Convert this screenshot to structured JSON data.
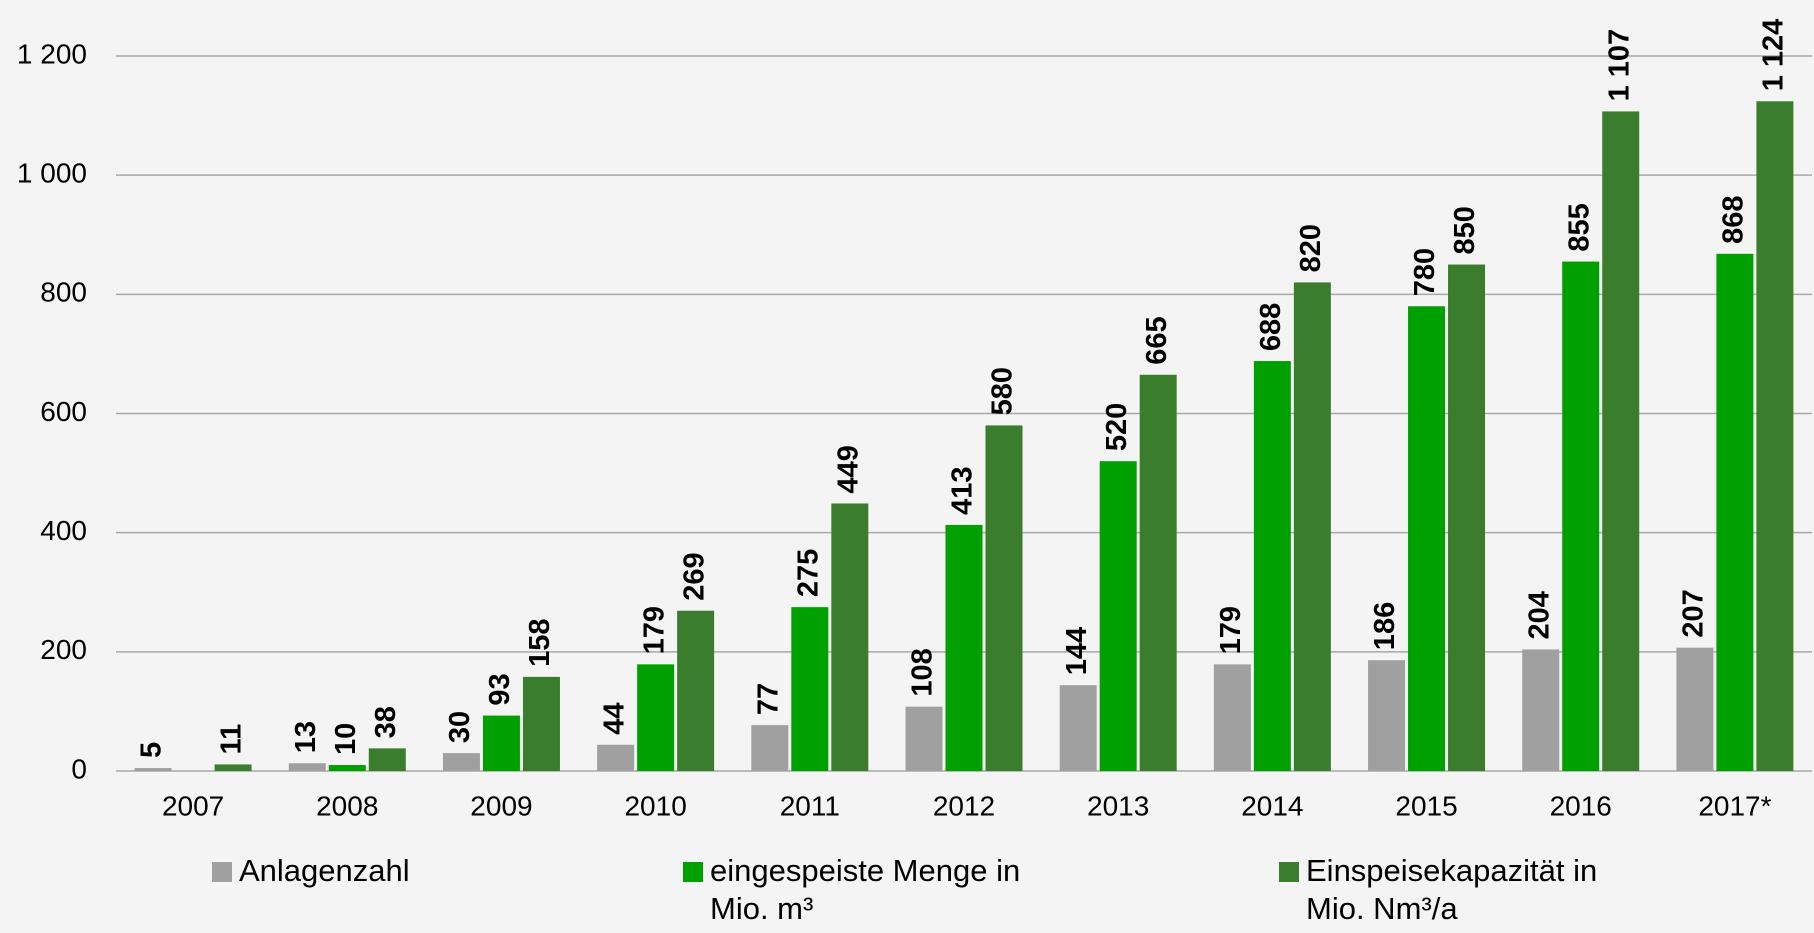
{
  "chart_data": {
    "type": "bar",
    "categories": [
      "2007",
      "2008",
      "2009",
      "2010",
      "2011",
      "2012",
      "2013",
      "2014",
      "2015",
      "2016",
      "2017*"
    ],
    "series": [
      {
        "name": "Anlagenzahl",
        "color": "#a0a0a0",
        "values": [
          5,
          13,
          30,
          44,
          77,
          108,
          144,
          179,
          186,
          204,
          207
        ]
      },
      {
        "name": "eingespeiste Menge in Mio. m³",
        "color": "#00a000",
        "values": [
          null,
          10,
          93,
          179,
          275,
          413,
          520,
          688,
          780,
          855,
          868
        ]
      },
      {
        "name": "Einspeisekapazität in Mio. Nm³/a",
        "color": "#3a7d2c",
        "values": [
          11,
          38,
          158,
          269,
          449,
          580,
          665,
          820,
          850,
          1107,
          1124
        ],
        "value_labels": [
          "11",
          "38",
          "158",
          "269",
          "449",
          "580",
          "665",
          "820",
          "850",
          "1 107",
          "1 124"
        ]
      }
    ],
    "ylim": [
      0,
      1200
    ],
    "yticks": [
      0,
      200,
      400,
      600,
      800,
      {
        "value": 1000,
        "label": "1 000"
      },
      {
        "value": 1200,
        "label": "1 200"
      }
    ],
    "grid": true
  }
}
